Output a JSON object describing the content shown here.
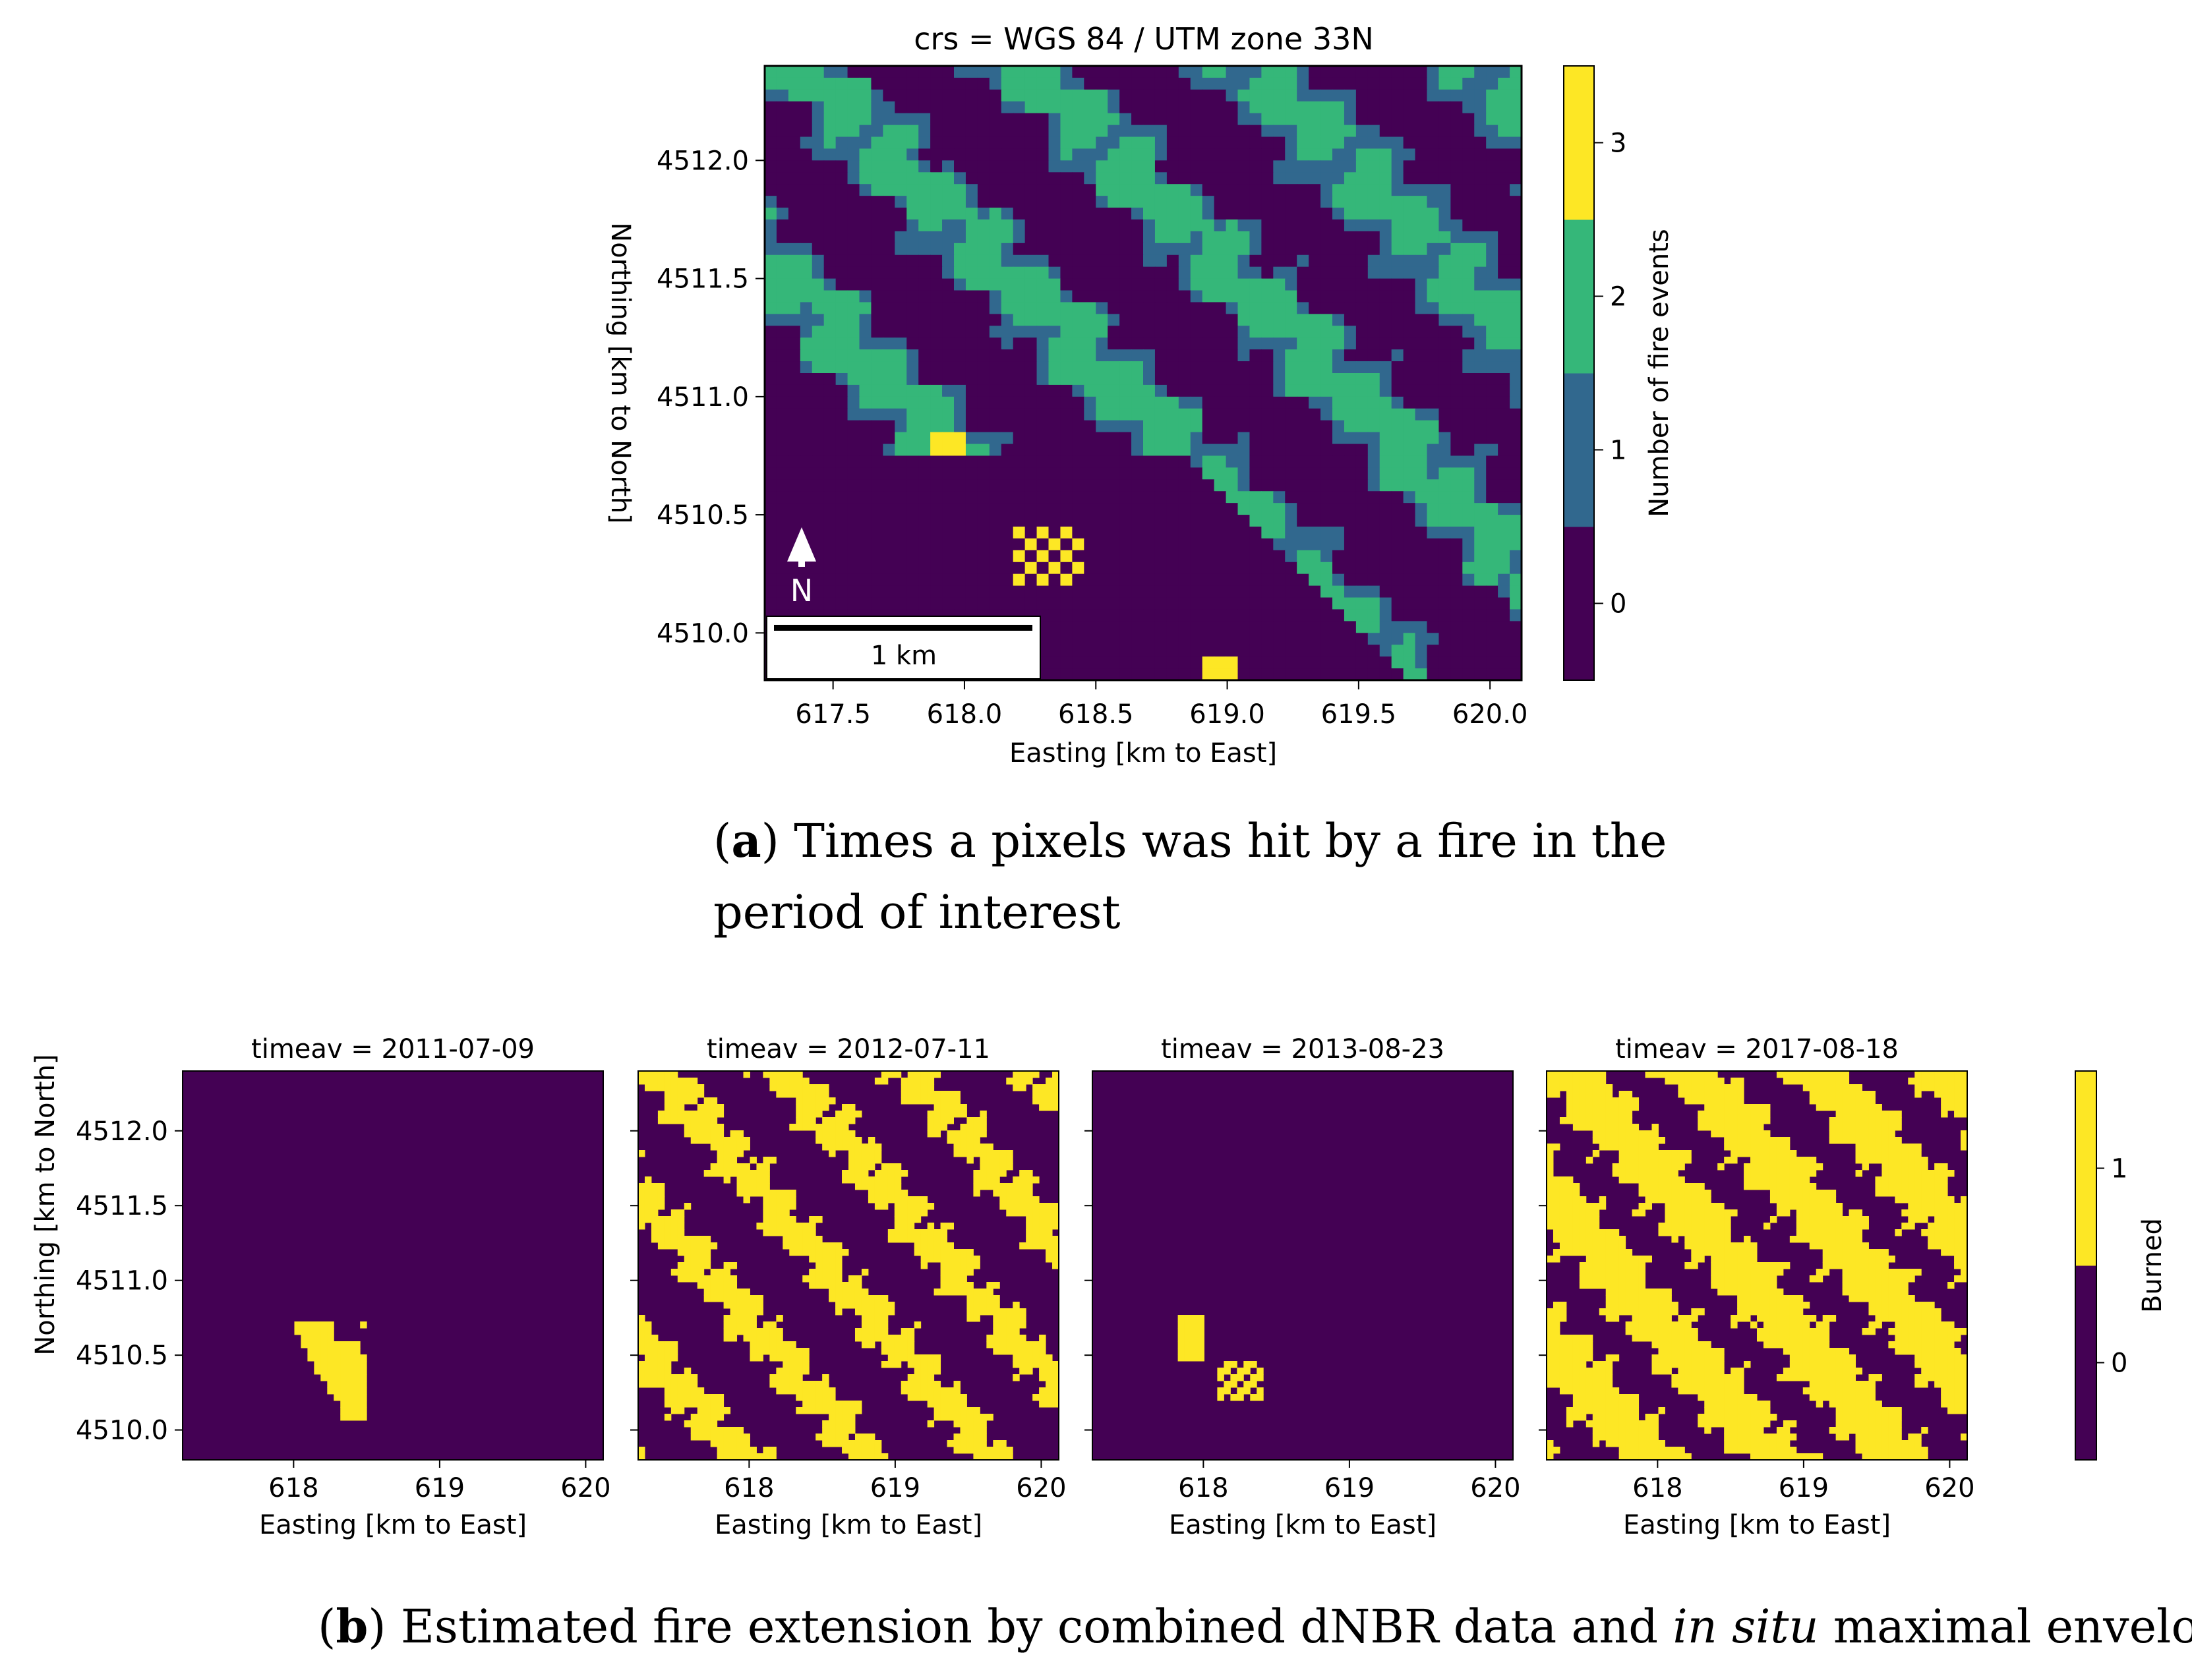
{
  "chart_data": [
    {
      "id": "a",
      "type": "heatmap",
      "title": "crs = WGS 84 / UTM zone 33N",
      "xlabel": "Easting [km to East]",
      "ylabel": "Northing [km to North]",
      "xlim": [
        617.24,
        620.12
      ],
      "ylim": [
        4509.8,
        4512.4
      ],
      "xticks": [
        "617.5",
        "618.0",
        "618.5",
        "619.0",
        "619.5",
        "620.0"
      ],
      "xtick_values": [
        617.5,
        618.0,
        618.5,
        619.0,
        619.5,
        620.0
      ],
      "yticks": [
        "4510.0",
        "4510.5",
        "4511.0",
        "4511.5",
        "4512.0"
      ],
      "ytick_values": [
        4510.0,
        4510.5,
        4511.0,
        4511.5,
        4512.0
      ],
      "colorbar": {
        "label": "Number of fire events",
        "ticks": [
          "0",
          "1",
          "2",
          "3"
        ],
        "colors": [
          "#440154",
          "#31688e",
          "#35b779",
          "#fde725"
        ],
        "range": [
          -0.5,
          3.5
        ]
      },
      "north_arrow": "N",
      "scale_bar": "1 km",
      "caption_letter": "a",
      "caption": "Times a pixels was hit by a fire in the period of interest"
    },
    {
      "id": "b",
      "type": "heatmap",
      "xlabel": "Easting [km to East]",
      "ylabel": "Northing [km to North]",
      "xticks": [
        "618",
        "619",
        "620"
      ],
      "xtick_values": [
        618,
        619,
        620
      ],
      "yticks": [
        "4510.0",
        "4510.5",
        "4511.0",
        "4511.5",
        "4512.0"
      ],
      "ytick_values": [
        4510.0,
        4510.5,
        4511.0,
        4511.5,
        4512.0
      ],
      "xlim": [
        617.24,
        620.12
      ],
      "ylim": [
        4509.8,
        4512.4
      ],
      "panels": [
        {
          "title": "timeav = 2011-07-09",
          "burned_fraction": 0.03
        },
        {
          "title": "timeav = 2012-07-11",
          "burned_fraction": 0.45
        },
        {
          "title": "timeav = 2013-08-23",
          "burned_fraction": 0.01
        },
        {
          "title": "timeav = 2017-08-18",
          "burned_fraction": 0.62
        }
      ],
      "colorbar": {
        "label": "Burned",
        "ticks": [
          "0",
          "1"
        ],
        "colors": [
          "#440154",
          "#fde725"
        ],
        "range": [
          -0.5,
          1.5
        ]
      },
      "caption_letter": "b",
      "caption_before": "Estimated fire extension by combined dNBR data and ",
      "caption_italic": "in situ",
      "caption_after": " maximal envelope"
    }
  ]
}
